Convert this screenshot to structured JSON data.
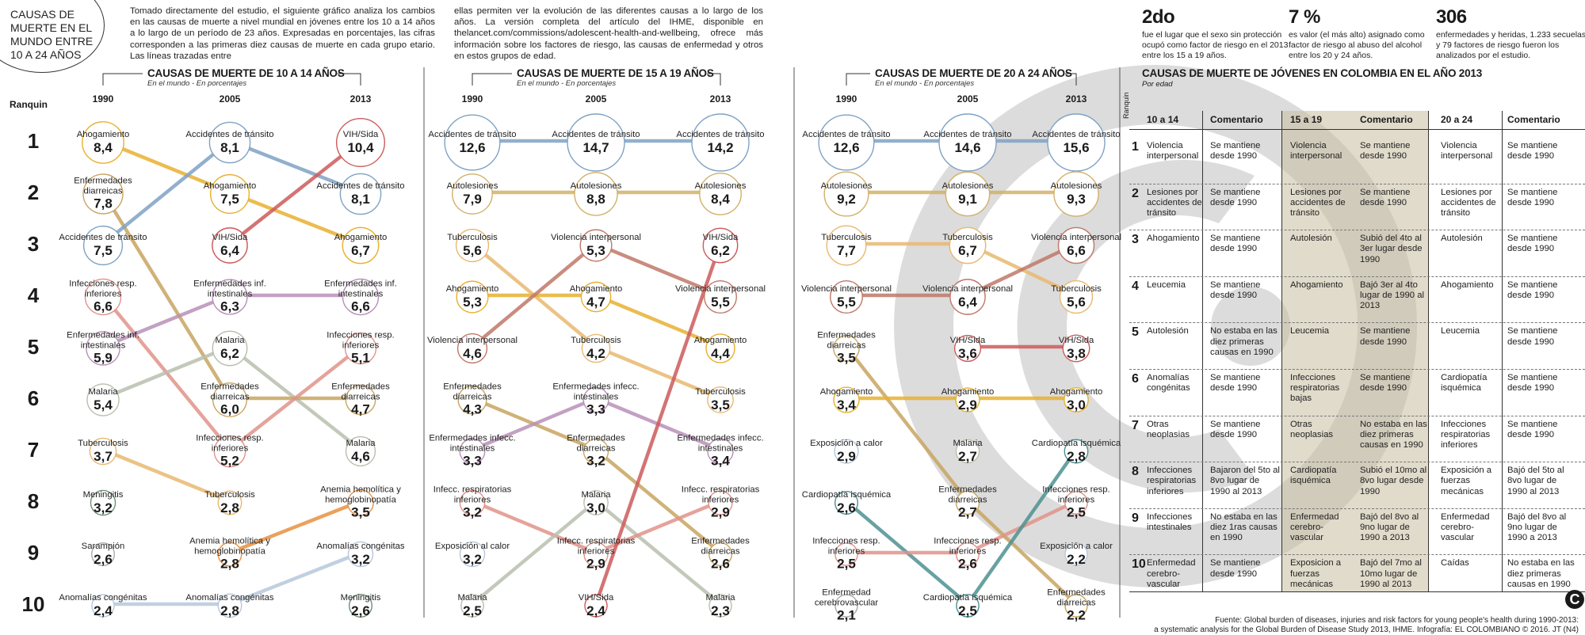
{
  "header": {
    "title": "Causas de muerte en el mundo entre 10 a 24 años",
    "intro_left": "Tomado directamente del estudio, el siguiente gráfico analiza los cambios en las causas de muerte a nivel mundial en jóvenes entre los 10 a 14 años a lo largo de un período de 23 años. Expresadas en porcentajes, las cifras corresponden a las primeras diez causas de muerte en cada grupo etario. Las líneas trazadas entre",
    "intro_right": "ellas permiten ver la evolución de las diferentes causas a lo largo de los años. La versión completa del artículo del IHME, disponible en thelancet.com/commissions/adolescent-health-and-wellbeing, ofrece más información sobre los factores de riesgo, las causas de enfermedad y otros en estos grupos de edad."
  },
  "stats": [
    {
      "num": "2do",
      "text": "fue el lugar que el sexo sin protección ocupó como factor de riesgo en el 2013 entre los 15 a 19 años."
    },
    {
      "num": "7 %",
      "text": "es valor (el más alto) asignado como factor de riesgo al abuso del alcohol entre los 20 y 24 años."
    },
    {
      "num": "306",
      "text": "enfermedades y heridas, 1.233 secuelas y 79 factores de riesgo fueron los analizados por el estudio."
    }
  ],
  "ranquin_label": "Ranquin",
  "ranks": [
    "1",
    "2",
    "3",
    "4",
    "5",
    "6",
    "7",
    "8",
    "9",
    "10"
  ],
  "colors": {
    "Ahogamiento": "#e8b030",
    "Accidentes de tránsito": "#7fa2c4",
    "VIH/Sida": "#cc5a5a",
    "Enfermedades diarreicas": "#c8a560",
    "Infecciones resp. inferiores": "#e0938a",
    "Enfermedades inf. intestinales": "#b890b8",
    "Malaria": "#b8bfae",
    "Tuberculosis": "#e8b870",
    "Meningitis": "#6f8f78",
    "Sarampión": "#aaaaaa",
    "Anemia hemolítica y hemoglobinopatía": "#e89040",
    "Anomalías congénitas": "#b6c8dc",
    "Autolesiones": "#d2b068",
    "Violencia interpersonal": "#c07868",
    "Exposición al calor": "#b6c8dc",
    "Cardiopatía isquémica": "#4e9090",
    "Enfermedad cerebrovascular": "#aaaaaa"
  },
  "chart_data": [
    {
      "type": "slope",
      "title": "Causas de muerte de 10 a 14 años",
      "subtitle": "En el mundo - En porcentajes",
      "years": [
        "1990",
        "2005",
        "2013"
      ],
      "columns": [
        [
          {
            "cause": "Ahogamiento",
            "label": "Ahogamiento",
            "value": "8,4"
          },
          {
            "cause": "Enfermedades diarreicas",
            "label": "Enfermedades diarreicas",
            "value": "7,8"
          },
          {
            "cause": "Accidentes de tránsito",
            "label": "Accidentes de tránsito",
            "value": "7,5"
          },
          {
            "cause": "Infecciones resp. inferiores",
            "label": "Infecciones resp. inferiores",
            "value": "6,6"
          },
          {
            "cause": "Enfermedades inf. intestinales",
            "label": "Enfermedades inf. intestinales",
            "value": "5,9"
          },
          {
            "cause": "Malaria",
            "label": "Malaria",
            "value": "5,4"
          },
          {
            "cause": "Tuberculosis",
            "label": "Tuberculosis",
            "value": "3,7"
          },
          {
            "cause": "Meningitis",
            "label": "Meningitis",
            "value": "3,2"
          },
          {
            "cause": "Sarampión",
            "label": "Sarampión",
            "value": "2,6"
          },
          {
            "cause": "Anomalías congénitas",
            "label": "Anomalías congénitas",
            "value": "2,4"
          }
        ],
        [
          {
            "cause": "Accidentes de tránsito",
            "label": "Accidentes de tránsito",
            "value": "8,1"
          },
          {
            "cause": "Ahogamiento",
            "label": "Ahogamiento",
            "value": "7,5"
          },
          {
            "cause": "VIH/Sida",
            "label": "VIH/Sida",
            "value": "6,4"
          },
          {
            "cause": "Enfermedades inf. intestinales",
            "label": "Enfermedades inf. intestinales",
            "value": "6,3"
          },
          {
            "cause": "Malaria",
            "label": "Malaria",
            "value": "6,2"
          },
          {
            "cause": "Enfermedades diarreicas",
            "label": "Enfermedades diarreicas",
            "value": "6,0"
          },
          {
            "cause": "Infecciones resp. inferiores",
            "label": "Infecciones resp. inferiores",
            "value": "5,2"
          },
          {
            "cause": "Tuberculosis",
            "label": "Tuberculosis",
            "value": "2,8"
          },
          {
            "cause": "Anemia hemolítica y hemoglobinopatía",
            "label": "Anemia hemolítica y hemoglobinopatía",
            "value": "2,8"
          },
          {
            "cause": "Anomalías congénitas",
            "label": "Anomalías congénitas",
            "value": "2,8"
          }
        ],
        [
          {
            "cause": "VIH/Sida",
            "label": "VIH/Sida",
            "value": "10,4"
          },
          {
            "cause": "Accidentes de tránsito",
            "label": "Accidentes de tránsito",
            "value": "8,1"
          },
          {
            "cause": "Ahogamiento",
            "label": "Ahogamiento",
            "value": "6,7"
          },
          {
            "cause": "Enfermedades inf. intestinales",
            "label": "Enfermedades inf. intestinales",
            "value": "6,6"
          },
          {
            "cause": "Infecciones resp. inferiores",
            "label": "Infecciones resp. inferiores",
            "value": "5,1"
          },
          {
            "cause": "Enfermedades diarreicas",
            "label": "Enfermedades diarreicas",
            "value": "4,7"
          },
          {
            "cause": "Malaria",
            "label": "Malaria",
            "value": "4,6"
          },
          {
            "cause": "Anemia hemolítica y hemoglobinopatía",
            "label": "Anemia hemolítica y hemoglobinopatía",
            "value": "3,5"
          },
          {
            "cause": "Anomalías congénitas",
            "label": "Anomalías congénitas",
            "value": "3,2"
          },
          {
            "cause": "Meningitis",
            "label": "Meningitis",
            "value": "2,6"
          }
        ]
      ]
    },
    {
      "type": "slope",
      "title": "Causas de muerte de 15 a 19 años",
      "subtitle": "En el mundo - En porcentajes",
      "years": [
        "1990",
        "2005",
        "2013"
      ],
      "columns": [
        [
          {
            "cause": "Accidentes de tránsito",
            "label": "Accidentes de tránsito",
            "value": "12,6"
          },
          {
            "cause": "Autolesiones",
            "label": "Autolesiones",
            "value": "7,9"
          },
          {
            "cause": "Tuberculosis",
            "label": "Tuberculosis",
            "value": "5,6"
          },
          {
            "cause": "Ahogamiento",
            "label": "Ahogamiento",
            "value": "5,3"
          },
          {
            "cause": "Violencia interpersonal",
            "label": "Violencia interpersonal",
            "value": "4,6"
          },
          {
            "cause": "Enfermedades diarreicas",
            "label": "Enfermedades diarreicas",
            "value": "4,3"
          },
          {
            "cause": "Enfermedades inf. intestinales",
            "label": "Enfermedades infecc. intestinales",
            "value": "3,3"
          },
          {
            "cause": "Infecciones resp. inferiores",
            "label": "Infecc. respiratorias inferiores",
            "value": "3,2"
          },
          {
            "cause": "Exposición al calor",
            "label": "Exposición al calor",
            "value": "3,2"
          },
          {
            "cause": "Malaria",
            "label": "Malaria",
            "value": "2,5"
          }
        ],
        [
          {
            "cause": "Accidentes de tránsito",
            "label": "Accidentes de tránsito",
            "value": "14,7"
          },
          {
            "cause": "Autolesiones",
            "label": "Autolesiones",
            "value": "8,8"
          },
          {
            "cause": "Violencia interpersonal",
            "label": "Violencia interpersonal",
            "value": "5,3"
          },
          {
            "cause": "Ahogamiento",
            "label": "Ahogamiento",
            "value": "4,7"
          },
          {
            "cause": "Tuberculosis",
            "label": "Tuberculosis",
            "value": "4,2"
          },
          {
            "cause": "Enfermedades inf. intestinales",
            "label": "Enfermedades infecc. intestinales",
            "value": "3,3"
          },
          {
            "cause": "Enfermedades diarreicas",
            "label": "Enfermedades diarreicas",
            "value": "3,2"
          },
          {
            "cause": "Malaria",
            "label": "Malaria",
            "value": "3,0"
          },
          {
            "cause": "Infecciones resp. inferiores",
            "label": "Infecc. respiratorias inferiores",
            "value": "2,9"
          },
          {
            "cause": "VIH/Sida",
            "label": "VIH/Sida",
            "value": "2,4"
          }
        ],
        [
          {
            "cause": "Accidentes de tránsito",
            "label": "Accidentes de tránsito",
            "value": "14,2"
          },
          {
            "cause": "Autolesiones",
            "label": "Autolesiones",
            "value": "8,4"
          },
          {
            "cause": "VIH/Sida",
            "label": "VIH/Sida",
            "value": "6,2"
          },
          {
            "cause": "Violencia interpersonal",
            "label": "Violencia interpersonal",
            "value": "5,5"
          },
          {
            "cause": "Ahogamiento",
            "label": "Ahogamiento",
            "value": "4,4"
          },
          {
            "cause": "Tuberculosis",
            "label": "Tuberculosis",
            "value": "3,5"
          },
          {
            "cause": "Enfermedades inf. intestinales",
            "label": "Enfermedades infecc. intestinales",
            "value": "3,4"
          },
          {
            "cause": "Infecciones resp. inferiores",
            "label": "Infecc. respiratorias inferiores",
            "value": "2,9"
          },
          {
            "cause": "Enfermedades diarreicas",
            "label": "Enfermedades diarreicas",
            "value": "2,6"
          },
          {
            "cause": "Malaria",
            "label": "Malaria",
            "value": "2,3"
          }
        ]
      ]
    },
    {
      "type": "slope",
      "title": "Causas de muerte de 20 a 24 años",
      "subtitle": "En el mundo - En porcentajes",
      "years": [
        "1990",
        "2005",
        "2013"
      ],
      "columns": [
        [
          {
            "cause": "Accidentes de tránsito",
            "label": "Accidentes de tránsito",
            "value": "12,6"
          },
          {
            "cause": "Autolesiones",
            "label": "Autolesiones",
            "value": "9,2"
          },
          {
            "cause": "Tuberculosis",
            "label": "Tuberculosis",
            "value": "7,7"
          },
          {
            "cause": "Violencia interpersonal",
            "label": "Violencia interpersonal",
            "value": "5,5"
          },
          {
            "cause": "Enfermedades diarreicas",
            "label": "Enfermedades diarreicas",
            "value": "3,5"
          },
          {
            "cause": "Ahogamiento",
            "label": "Ahogamiento",
            "value": "3,4"
          },
          {
            "cause": "Exposición al calor",
            "label": "Exposición a calor",
            "value": "2,9"
          },
          {
            "cause": "Cardiopatía isquémica",
            "label": "Cardiopatía isquémica",
            "value": "2,6"
          },
          {
            "cause": "Infecciones resp. inferiores",
            "label": "Infecciones resp. inferiores",
            "value": "2,5"
          },
          {
            "cause": "Enfermedad cerebrovascular",
            "label": "Enfermedad cerebrovascular",
            "value": "2,1"
          }
        ],
        [
          {
            "cause": "Accidentes de tránsito",
            "label": "Accidentes de tránsito",
            "value": "14,6"
          },
          {
            "cause": "Autolesiones",
            "label": "Autolesiones",
            "value": "9,1"
          },
          {
            "cause": "Tuberculosis",
            "label": "Tuberculosis",
            "value": "6,7"
          },
          {
            "cause": "Violencia interpersonal",
            "label": "Violencia interpersonal",
            "value": "6,4"
          },
          {
            "cause": "VIH/Sida",
            "label": "VIH/Sida",
            "value": "3,6"
          },
          {
            "cause": "Ahogamiento",
            "label": "Ahogamiento",
            "value": "2,9"
          },
          {
            "cause": "Malaria",
            "label": "Malaria",
            "value": "2,7"
          },
          {
            "cause": "Enfermedades diarreicas",
            "label": "Enfermedades diarreicas",
            "value": "2,7"
          },
          {
            "cause": "Infecciones resp. inferiores",
            "label": "Infecciones resp. inferiores",
            "value": "2,6"
          },
          {
            "cause": "Cardiopatía isquémica",
            "label": "Cardiopatía isquémica",
            "value": "2,5"
          }
        ],
        [
          {
            "cause": "Accidentes de tránsito",
            "label": "Accidentes de tránsito",
            "value": "15,6"
          },
          {
            "cause": "Autolesiones",
            "label": "Autolesiones",
            "value": "9,3"
          },
          {
            "cause": "Violencia interpersonal",
            "label": "Violencia interpersonal",
            "value": "6,6"
          },
          {
            "cause": "Tuberculosis",
            "label": "Tuberculosis",
            "value": "5,6"
          },
          {
            "cause": "VIH/Sida",
            "label": "VIH/Sida",
            "value": "3,8"
          },
          {
            "cause": "Ahogamiento",
            "label": "Ahogamiento",
            "value": "3,0"
          },
          {
            "cause": "Cardiopatía isquémica",
            "label": "Cardiopatía isquémica",
            "value": "2,8"
          },
          {
            "cause": "Infecciones resp. inferiores",
            "label": "Infecciones resp. inferiores",
            "value": "2,5"
          },
          {
            "cause": "Exposición al calor",
            "label": "Exposición a calor",
            "value": "2,2"
          },
          {
            "cause": "Enfermedades diarreicas",
            "label": "Enfermedades diarreicas",
            "value": "2,2"
          }
        ]
      ]
    },
    {
      "type": "table",
      "title": "Causas de muerte de jóvenes en Colombia en el año 2013",
      "subtitle": "Por edad",
      "ranquin_label": "Ranquin",
      "headers": [
        "10 a 14",
        "Comentario",
        "15 a 19",
        "Comentario",
        "20 a 24",
        "Comentario"
      ],
      "rows": [
        [
          "Violencia interpersonal",
          "Se mantiene desde 1990",
          "Violencia interpersonal",
          "Se mantiene desde 1990",
          "Violencia interpersonal",
          "Se mantiene desde 1990"
        ],
        [
          "Lesiones por accidentes de tránsito",
          "Se mantiene desde 1990",
          "Lesiones por accidentes de tránsito",
          "Se mantiene desde 1990",
          "Lesiones por accidentes de tránsito",
          "Se mantiene desde 1990"
        ],
        [
          "Ahogamiento",
          "Se mantiene desde 1990",
          "Autolesión",
          "Subió del 4to al 3er lugar desde 1990",
          "Autolesión",
          "Se mantiene desde 1990"
        ],
        [
          "Leucemia",
          "Se mantiene desde 1990",
          "Ahogamiento",
          "Bajó 3er al 4to lugar de 1990 al 2013",
          "Ahogamiento",
          "Se mantiene desde 1990"
        ],
        [
          "Autolesión",
          "No estaba en las diez primeras causas en 1990",
          "Leucemia",
          "Se mantiene desde 1990",
          "Leucemia",
          "Se mantiene desde 1990"
        ],
        [
          "Anomalías congénitas",
          "Se mantiene desde 1990",
          "Infecciones respiratorias bajas",
          "Se mantiene desde 1990",
          "Cardiopatía isquémica",
          "Se mantiene desde 1990"
        ],
        [
          "Otras neoplasias",
          "Se mantiene desde 1990",
          "Otras neoplasias",
          "No estaba en las diez primeras causas en 1990",
          "Infecciones respiratorias inferiores",
          "Se mantiene desde 1990"
        ],
        [
          "Infecciones respiratorias inferiores",
          "Bajaron del 5to al 8vo lugar de 1990 al 2013",
          "Cardiopatía isquémica",
          "Subió el 10mo al 8vo lugar desde 1990",
          "Exposición a fuerzas mecánicas",
          "Bajó del 5to al 8vo lugar de 1990 al 2013"
        ],
        [
          "Infecciones intestinales",
          "No estaba en las diez 1ras causas en 1990",
          "Enfermedad cerebro-vascular",
          "Bajó del 8vo al 9no lugar de 1990 a 2013",
          "Enfermedad cerebro-vascular",
          "Bajó del 8vo al 9no lugar de 1990 a 2013"
        ],
        [
          "Enfermedad cerebro-vascular",
          "Se mantiene desde 1990",
          "Exposicion a fuerzas mecánicas",
          "Bajó del 7mo al 10mo lugar de 1990 al 2013",
          "Caídas",
          "No estaba en las diez primeras causas en 1990"
        ]
      ]
    }
  ],
  "source": {
    "line1": "Fuente: Global burden of diseases, injuries and risk factors for young people's health during 1990-2013:",
    "line2": "a systematic analysis for the Global Burden of Disease Study 2013, IHME. Infografía: EL COLOMBIANO © 2016. JT (N4)",
    "logo": "C"
  }
}
